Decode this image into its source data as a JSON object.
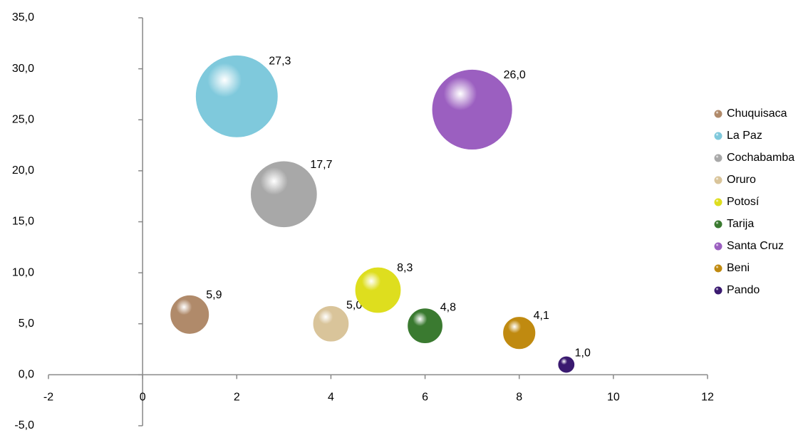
{
  "chart_data": {
    "type": "bubble",
    "xlim": [
      -2,
      12
    ],
    "xticks": [
      -2,
      0,
      2,
      4,
      6,
      8,
      10,
      12
    ],
    "ylim": [
      -5,
      35
    ],
    "yticks": [
      {
        "value": -5,
        "label": "-5,0"
      },
      {
        "value": 0,
        "label": "0,0"
      },
      {
        "value": 5,
        "label": "5,0"
      },
      {
        "value": 10,
        "label": "10,0"
      },
      {
        "value": 15,
        "label": "15,0"
      },
      {
        "value": 20,
        "label": "20,0"
      },
      {
        "value": 25,
        "label": "25,0"
      },
      {
        "value": 30,
        "label": "30,0"
      },
      {
        "value": 35,
        "label": "35,0"
      }
    ],
    "legend": "right",
    "series": [
      {
        "name": "Chuquisaca",
        "color": "#b08a6a",
        "x": [
          1
        ],
        "values": [
          5.9
        ],
        "value_labels": [
          "5,9"
        ]
      },
      {
        "name": "La Paz",
        "color": "#7fc9dc",
        "x": [
          2
        ],
        "values": [
          27.3
        ],
        "value_labels": [
          "27,3"
        ]
      },
      {
        "name": "Cochabamba",
        "color": "#a8a8a8",
        "x": [
          3
        ],
        "values": [
          17.7
        ],
        "value_labels": [
          "17,7"
        ]
      },
      {
        "name": "Oruro",
        "color": "#d9c49a",
        "x": [
          4
        ],
        "values": [
          5.0
        ],
        "value_labels": [
          "5,0"
        ]
      },
      {
        "name": "Potosí",
        "color": "#dede1e",
        "x": [
          5
        ],
        "values": [
          8.3
        ],
        "value_labels": [
          "8,3"
        ]
      },
      {
        "name": "Tarija",
        "color": "#3a7a30",
        "x": [
          6
        ],
        "values": [
          4.8
        ],
        "value_labels": [
          "4,8"
        ]
      },
      {
        "name": "Santa Cruz",
        "color": "#9b5fc0",
        "x": [
          7
        ],
        "values": [
          26.0
        ],
        "value_labels": [
          "26,0"
        ]
      },
      {
        "name": "Beni",
        "color": "#c08a10",
        "x": [
          8
        ],
        "values": [
          4.1
        ],
        "value_labels": [
          "4,1"
        ]
      },
      {
        "name": "Pando",
        "color": "#3a1a70",
        "x": [
          9
        ],
        "values": [
          1.0
        ],
        "value_labels": [
          "1,0"
        ]
      }
    ]
  }
}
